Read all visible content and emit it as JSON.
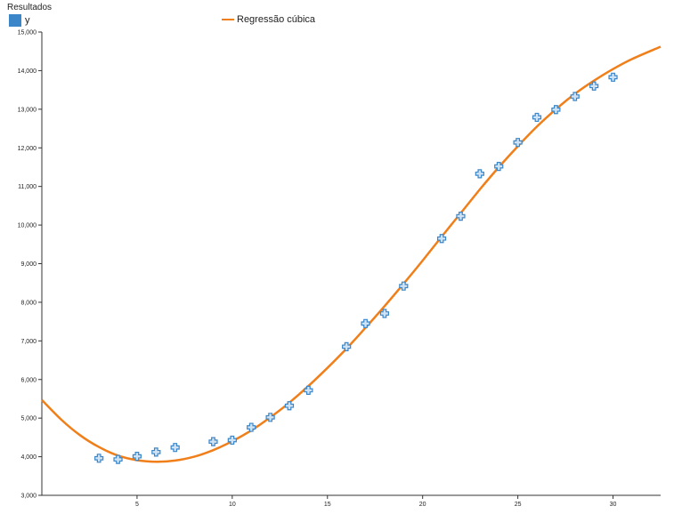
{
  "legend": {
    "title": "Resultados",
    "series_label": "y",
    "fit_label": "Regressão cúbica"
  },
  "colors": {
    "points": "#3a86c8",
    "points_fill": "#cfe3f5",
    "fit": "#f07f1a",
    "axis": "#333333"
  },
  "chart_data": {
    "type": "scatter",
    "title": "",
    "xlabel": "",
    "ylabel": "",
    "xlim": [
      0,
      32.5
    ],
    "ylim": [
      3000,
      15000
    ],
    "x_ticks": [
      5,
      10,
      15,
      20,
      25,
      30
    ],
    "x_tick_labels": [
      "5",
      "10",
      "15",
      "20",
      "25",
      "30"
    ],
    "y_ticks": [
      3000,
      4000,
      5000,
      6000,
      7000,
      8000,
      9000,
      10000,
      11000,
      12000,
      13000,
      14000,
      15000
    ],
    "y_tick_labels": [
      "3,000",
      "4,000",
      "5,000",
      "6,000",
      "7,000",
      "8,000",
      "9,000",
      "10,000",
      "11,000",
      "12,000",
      "13,000",
      "14,000",
      "15,000"
    ],
    "series": [
      {
        "name": "y",
        "x": [
          3,
          4,
          5,
          6,
          7,
          9,
          10,
          11,
          12,
          13,
          14,
          16,
          17,
          18,
          19,
          21,
          22,
          23,
          24,
          25,
          26,
          27,
          28,
          29,
          30
        ],
        "y": [
          3960,
          3930,
          4010,
          4120,
          4240,
          4390,
          4430,
          4760,
          5020,
          5320,
          5720,
          6850,
          7450,
          7710,
          8420,
          9650,
          10230,
          11330,
          11520,
          12140,
          12790,
          12990,
          13330,
          13600,
          13830
        ]
      }
    ],
    "fit": {
      "name": "Regressão cúbica",
      "x": [
        0,
        1,
        2,
        3,
        4,
        5,
        6,
        7,
        8,
        9,
        10,
        11,
        12,
        13,
        14,
        15,
        16,
        17,
        18,
        19,
        20,
        21,
        22,
        23,
        24,
        25,
        26,
        27,
        28,
        29,
        30,
        31,
        32.5
      ],
      "y": [
        5470,
        4970,
        4560,
        4250,
        4030,
        3910,
        3870,
        3900,
        4000,
        4170,
        4400,
        4680,
        5020,
        5400,
        5830,
        6300,
        6800,
        7340,
        7900,
        8480,
        9080,
        9700,
        10310,
        10920,
        11500,
        12040,
        12550,
        13000,
        13400,
        13740,
        14040,
        14300,
        14620
      ]
    },
    "grid": false,
    "legend_position": "top-left"
  }
}
